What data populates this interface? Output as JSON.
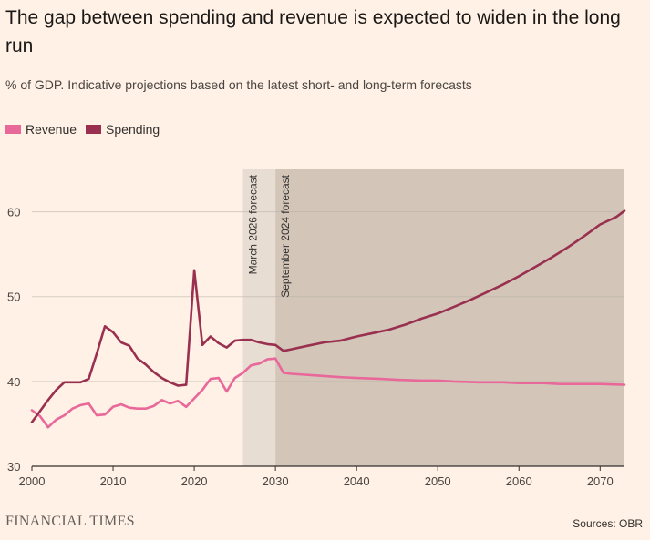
{
  "title": "The gap between spending and revenue is expected to widen in the long run",
  "subtitle": "% of GDP. Indicative projections based on the latest short- and long-term forecasts",
  "source": "Sources: OBR",
  "brand": "FINANCIAL TIMES",
  "colors": {
    "revenue": "#e9689a",
    "spending": "#99304f",
    "shade_light": "#e7ddd3",
    "shade_dark": "#d3c6b9",
    "background": "#fff1e5"
  },
  "chart_data": {
    "type": "line",
    "xlim": [
      2000,
      2073
    ],
    "ylim": [
      30,
      65
    ],
    "xticks": [
      2000,
      2010,
      2020,
      2030,
      2040,
      2050,
      2060,
      2070
    ],
    "yticks": [
      30,
      40,
      50,
      60
    ],
    "grid": true,
    "legend": "top-left",
    "shaded_regions": [
      {
        "label": "March 2026 forecast",
        "from": 2026,
        "to": 2030
      },
      {
        "label": "September 2024 forecast",
        "from": 2030,
        "to": 2073
      }
    ],
    "series": [
      {
        "name": "Revenue",
        "x": [
          2000,
          2001,
          2002,
          2003,
          2004,
          2005,
          2006,
          2007,
          2008,
          2009,
          2010,
          2011,
          2012,
          2013,
          2014,
          2015,
          2016,
          2017,
          2018,
          2019,
          2020,
          2021,
          2022,
          2023,
          2024,
          2025,
          2026,
          2027,
          2028,
          2029,
          2030,
          2031,
          2032,
          2035,
          2038,
          2040,
          2043,
          2045,
          2048,
          2050,
          2052,
          2055,
          2058,
          2060,
          2063,
          2065,
          2068,
          2070,
          2073
        ],
        "y": [
          36.6,
          35.9,
          34.6,
          35.5,
          36.0,
          36.8,
          37.2,
          37.4,
          36.0,
          36.1,
          37.0,
          37.3,
          36.9,
          36.8,
          36.8,
          37.1,
          37.8,
          37.4,
          37.7,
          37.0,
          38.0,
          39.0,
          40.3,
          40.4,
          38.8,
          40.4,
          41.0,
          41.9,
          42.1,
          42.6,
          42.7,
          41.0,
          40.9,
          40.7,
          40.5,
          40.4,
          40.3,
          40.2,
          40.1,
          40.1,
          40.0,
          39.9,
          39.9,
          39.8,
          39.8,
          39.7,
          39.7,
          39.7,
          39.6
        ]
      },
      {
        "name": "Spending",
        "x": [
          2000,
          2001,
          2002,
          2003,
          2004,
          2005,
          2006,
          2007,
          2008,
          2009,
          2010,
          2011,
          2012,
          2013,
          2014,
          2015,
          2016,
          2017,
          2018,
          2019,
          2020,
          2021,
          2022,
          2023,
          2024,
          2025,
          2026,
          2027,
          2028,
          2029,
          2030,
          2031,
          2032,
          2034,
          2036,
          2038,
          2040,
          2042,
          2044,
          2046,
          2048,
          2050,
          2052,
          2054,
          2056,
          2058,
          2060,
          2062,
          2064,
          2066,
          2068,
          2070,
          2072,
          2073
        ],
        "y": [
          35.2,
          36.5,
          37.8,
          39.0,
          39.9,
          39.9,
          39.9,
          40.3,
          43.3,
          46.5,
          45.8,
          44.6,
          44.2,
          42.7,
          42.0,
          41.1,
          40.4,
          39.9,
          39.5,
          39.6,
          53.1,
          44.3,
          45.3,
          44.5,
          44.0,
          44.8,
          44.9,
          44.9,
          44.6,
          44.4,
          44.3,
          43.6,
          43.8,
          44.2,
          44.6,
          44.8,
          45.3,
          45.7,
          46.1,
          46.7,
          47.4,
          48.0,
          48.8,
          49.6,
          50.5,
          51.4,
          52.4,
          53.5,
          54.6,
          55.8,
          57.1,
          58.5,
          59.4,
          60.1
        ]
      }
    ]
  }
}
